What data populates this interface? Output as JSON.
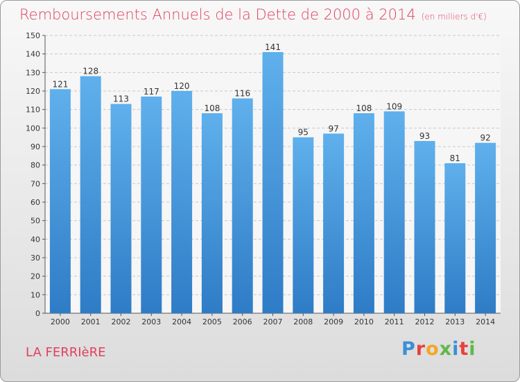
{
  "title": "Remboursements Annuels de la Dette de 2000 à 2014",
  "unit": "(en milliers d'€)",
  "commune": "LA FERRIèRE",
  "logo": {
    "letters": [
      "P",
      "r",
      "o",
      "x",
      "i",
      "t",
      "i"
    ],
    "colors": [
      "#3a8fd8",
      "#e8413b",
      "#f5a623",
      "#5fb84a",
      "#3a8fd8",
      "#e8413b",
      "#5fb84a"
    ]
  },
  "chart_data": {
    "type": "bar",
    "categories": [
      "2000",
      "2001",
      "2002",
      "2003",
      "2004",
      "2005",
      "2006",
      "2007",
      "2008",
      "2009",
      "2010",
      "2011",
      "2012",
      "2013",
      "2014"
    ],
    "values": [
      121,
      128,
      113,
      117,
      120,
      108,
      116,
      141,
      95,
      97,
      108,
      109,
      93,
      81,
      92
    ],
    "ylim": [
      0,
      150
    ],
    "yticks": [
      0,
      10,
      20,
      30,
      40,
      50,
      60,
      70,
      80,
      90,
      100,
      110,
      120,
      130,
      140,
      150
    ],
    "grid": true,
    "bar_color": "#3d8ed8"
  }
}
